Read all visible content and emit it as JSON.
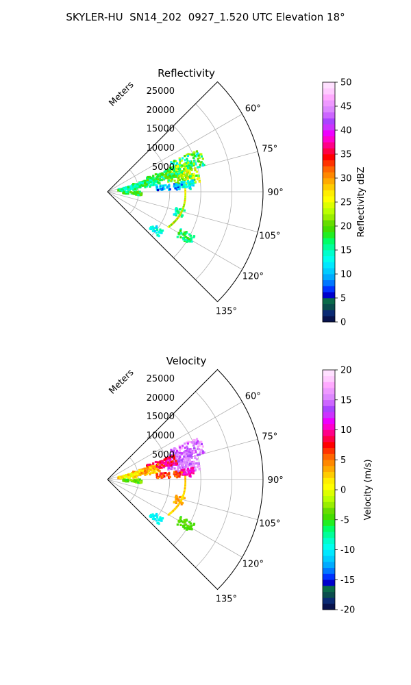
{
  "suptitle": "SKYLER-HU  SN14_202  0927_1.520 UTC Elevation 18°",
  "chart_data": [
    {
      "type": "polar-sector",
      "title": "Reflectivity",
      "radial_label": "Meters",
      "radial_ticks": [
        "5000",
        "10000",
        "15000",
        "20000",
        "25000"
      ],
      "radial_max": 25000,
      "angle_ticks": [
        "60°",
        "75°",
        "90°",
        "105°",
        "120°",
        "135°"
      ],
      "angle_range_deg": [
        45,
        135
      ],
      "colorbar": {
        "label": "Reflectivity dBZ",
        "range": [
          0,
          50
        ],
        "ticks": [
          "0",
          "5",
          "10",
          "15",
          "20",
          "25",
          "30",
          "35",
          "40",
          "45",
          "50"
        ],
        "colors": [
          "#08134d",
          "#0a2a73",
          "#0a4d4d",
          "#0a6a4a",
          "#0000cc",
          "#0033ff",
          "#0077ff",
          "#00aaff",
          "#00ccff",
          "#00e8ff",
          "#00ffee",
          "#00ffcc",
          "#00ff99",
          "#00ff66",
          "#22ee22",
          "#44dd00",
          "#66dd00",
          "#99ee00",
          "#bbff00",
          "#ddff00",
          "#ffff00",
          "#ffee00",
          "#ffcc00",
          "#ffaa00",
          "#ff8800",
          "#ff6600",
          "#ff3300",
          "#ff0000",
          "#ff0044",
          "#ff0088",
          "#ff00cc",
          "#ee00ff",
          "#cc33ff",
          "#aa44ff",
          "#cc66ff",
          "#dd88ff",
          "#ee99ff",
          "#ffaaff",
          "#ffccff",
          "#ffe0ff"
        ]
      }
    },
    {
      "type": "polar-sector",
      "title": "Velocity",
      "radial_label": "Meters",
      "radial_ticks": [
        "5000",
        "10000",
        "15000",
        "20000",
        "25000"
      ],
      "radial_max": 25000,
      "angle_ticks": [
        "60°",
        "75°",
        "90°",
        "105°",
        "120°",
        "135°"
      ],
      "angle_range_deg": [
        45,
        135
      ],
      "colorbar": {
        "label": "Velocity (m/s)",
        "range": [
          -20,
          20
        ],
        "ticks": [
          "-20",
          "-15",
          "-10",
          "-5",
          "0",
          "5",
          "10",
          "15",
          "20"
        ],
        "colors": [
          "#08134d",
          "#0a2a73",
          "#0a4d4d",
          "#0a6a4a",
          "#0000cc",
          "#0033ff",
          "#0077ff",
          "#00aaff",
          "#00ccff",
          "#00e8ff",
          "#00ffee",
          "#00ffcc",
          "#00ff99",
          "#00ff66",
          "#22ee22",
          "#44dd00",
          "#66dd00",
          "#99ee00",
          "#bbff00",
          "#ddff00",
          "#ffff00",
          "#ffee00",
          "#ffcc00",
          "#ffaa00",
          "#ff8800",
          "#ff6600",
          "#ff3300",
          "#ff0000",
          "#ff0044",
          "#ff0088",
          "#ff00cc",
          "#ee00ff",
          "#cc33ff",
          "#aa44ff",
          "#cc66ff",
          "#dd88ff",
          "#ee99ff",
          "#ffaaff",
          "#ffccff",
          "#ffe0ff"
        ]
      }
    }
  ]
}
